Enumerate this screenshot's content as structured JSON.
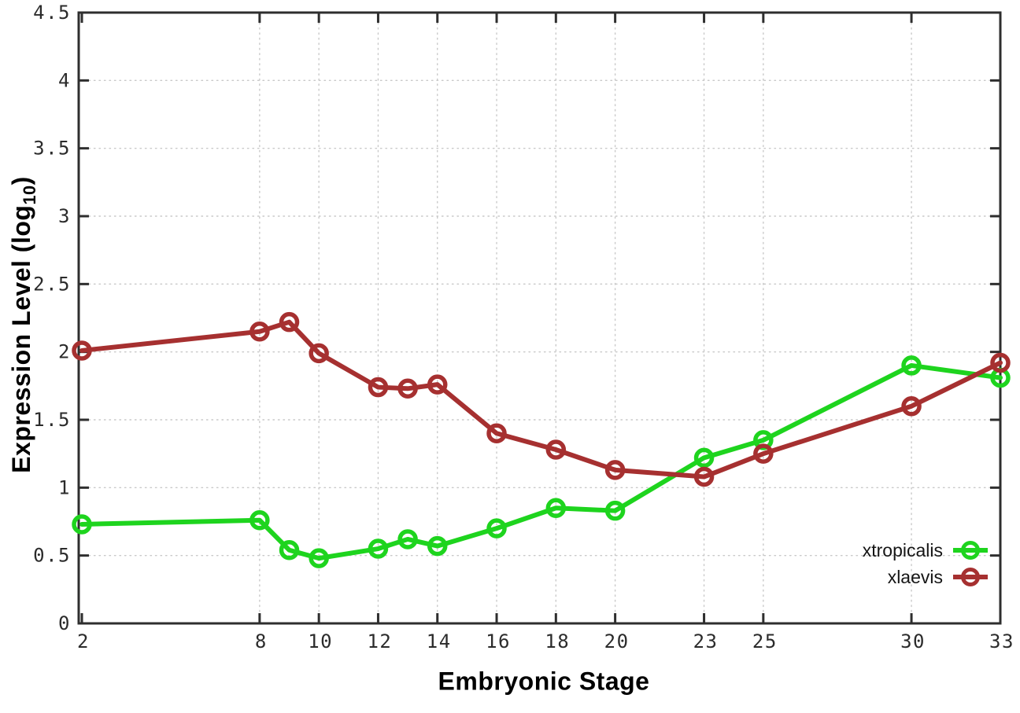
{
  "figure": {
    "background": "#ffffff",
    "xlabel": "Embryonic Stage",
    "ylabel": {
      "prefix": "Expression Level (log",
      "sub": "10",
      "suffix": ")"
    }
  },
  "chart_data": {
    "type": "line",
    "title": "",
    "xlabel": "Embryonic Stage",
    "ylabel": "Expression Level (log10)",
    "x": [
      2,
      8,
      9,
      10,
      12,
      13,
      14,
      16,
      18,
      20,
      23,
      25,
      30,
      33
    ],
    "xtick_labels": [
      2,
      8,
      10,
      12,
      14,
      16,
      18,
      20,
      23,
      25,
      30,
      33
    ],
    "xlim": [
      2,
      33
    ],
    "ylim": [
      0,
      4.5
    ],
    "ytick_step": 0.5,
    "grid": true,
    "grid_style": "dotted",
    "legend_position": "inside bottom right",
    "series": [
      {
        "name": "xtropicalis",
        "color": "#1ed41e",
        "marker": "open-circle",
        "values": [
          0.73,
          0.76,
          0.54,
          0.48,
          0.55,
          0.62,
          0.57,
          0.7,
          0.85,
          0.83,
          1.22,
          1.35,
          1.9,
          1.81
        ]
      },
      {
        "name": "xlaevis",
        "color": "#a63030",
        "marker": "open-circle",
        "values": [
          2.01,
          2.15,
          2.22,
          1.99,
          1.74,
          1.73,
          1.76,
          1.4,
          1.28,
          1.13,
          1.08,
          1.25,
          1.6,
          1.92
        ]
      }
    ],
    "axis_color": "#2e2e2e",
    "grid_color": "#c9c9c9",
    "tick_label_color": "#2b2b2b"
  }
}
